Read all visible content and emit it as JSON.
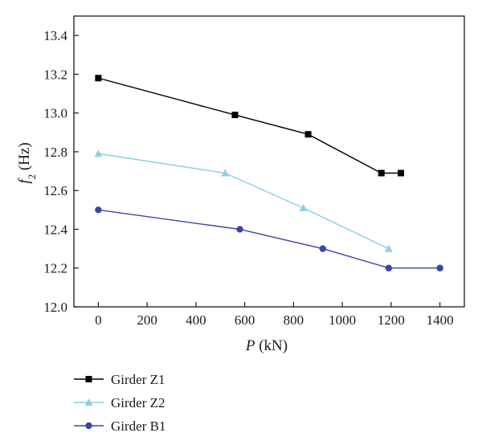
{
  "chart_data": {
    "type": "line",
    "xlabel": {
      "var": "P",
      "unit": " (kN)"
    },
    "ylabel": {
      "var": "f",
      "sub": "2",
      "unit": " (Hz)"
    },
    "xlim": [
      -100,
      1500
    ],
    "ylim": [
      12.0,
      13.5
    ],
    "xticks": [
      0,
      200,
      400,
      600,
      800,
      1000,
      1200,
      1400
    ],
    "yticks": [
      12.0,
      12.2,
      12.4,
      12.6,
      12.8,
      13.0,
      13.2,
      13.4
    ],
    "xtick_labels": [
      "0",
      "200",
      "400",
      "600",
      "800",
      "1000",
      "1200",
      "1400"
    ],
    "ytick_labels": [
      "12.0",
      "12.2",
      "12.4",
      "12.6",
      "12.8",
      "13.0",
      "13.2",
      "13.4"
    ],
    "grid": false,
    "legend_position": "bottom-left, below plot",
    "series": [
      {
        "name": "Girder Z1",
        "color": "#000000",
        "marker": "square",
        "x": [
          0,
          560,
          860,
          1160,
          1240
        ],
        "y": [
          13.18,
          12.99,
          12.89,
          12.69,
          12.69
        ]
      },
      {
        "name": "Girder Z2",
        "color": "#8ecfe3",
        "marker": "triangle",
        "x": [
          0,
          520,
          840,
          1190
        ],
        "y": [
          12.79,
          12.69,
          12.51,
          12.3
        ]
      },
      {
        "name": "Girder B1",
        "color": "#3a47a6",
        "marker": "circle",
        "x": [
          0,
          580,
          920,
          1190,
          1400
        ],
        "y": [
          12.5,
          12.4,
          12.3,
          12.2,
          12.2
        ]
      }
    ]
  }
}
